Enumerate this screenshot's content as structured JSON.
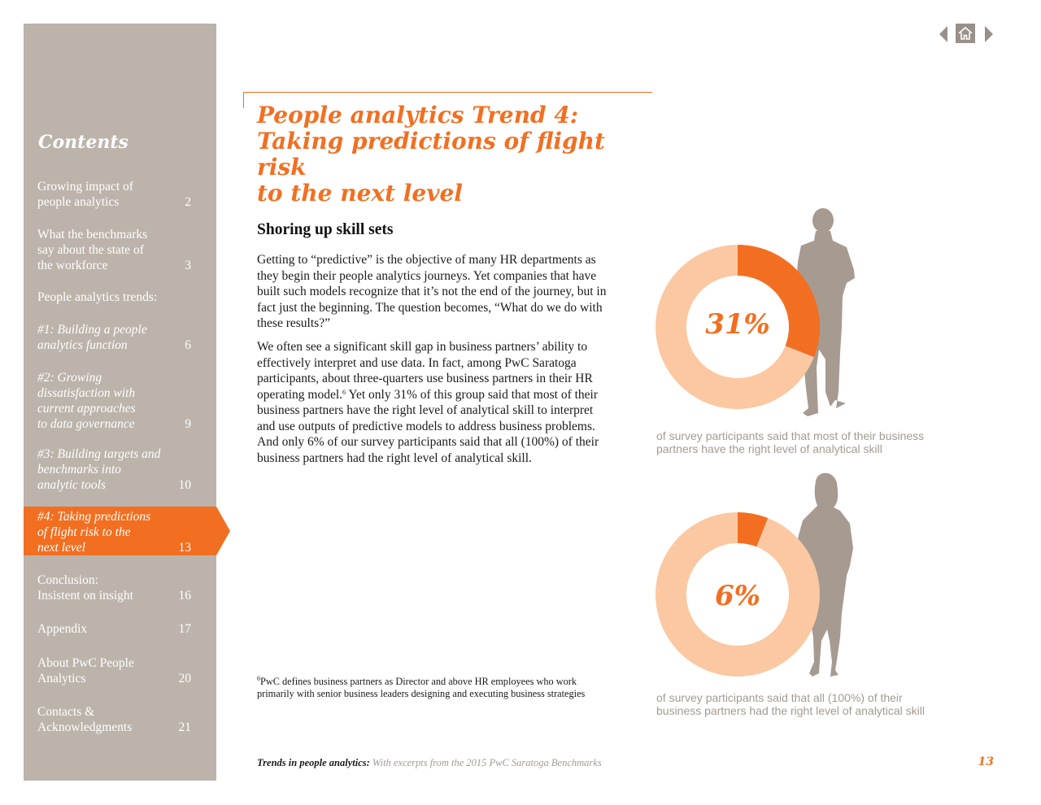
{
  "nav": {
    "prev_icon": "triangle-left-icon",
    "home_icon": "home-icon",
    "next_icon": "triangle-right-icon"
  },
  "sidebar": {
    "title": "Contents",
    "items": [
      {
        "label": "Growing impact of\npeople analytics",
        "page": "2",
        "italic": false
      },
      {
        "label": "What the benchmarks\nsay about the state of\nthe workforce",
        "page": "3",
        "italic": false
      },
      {
        "label": "People analytics trends:",
        "page": "",
        "italic": false
      },
      {
        "label": "#1: Building a people\nanalytics function",
        "page": "6",
        "italic": true
      },
      {
        "label": "#2: Growing\ndissatisfaction with\ncurrent approaches\nto data governance",
        "page": "9",
        "italic": true
      },
      {
        "label": "#3: Building targets and\nbenchmarks into\nanalytic tools",
        "page": "10",
        "italic": true
      },
      {
        "label": "#4: Taking predictions\nof flight risk to the\nnext level",
        "page": "13",
        "italic": true,
        "active": true
      },
      {
        "label": "Conclusion:\nInsistent on insight",
        "page": "16",
        "italic": false
      },
      {
        "label": "Appendix",
        "page": "17",
        "italic": false
      },
      {
        "label": "About PwC People\nAnalytics",
        "page": "20",
        "italic": false
      },
      {
        "label": "Contacts &\nAcknowledgments",
        "page": "21",
        "italic": false
      }
    ]
  },
  "main": {
    "title": "People analytics Trend 4:\nTaking predictions of flight risk\nto the next level",
    "section_heading": "Shoring up skill sets",
    "paragraph1": "Getting to “predictive” is the objective of many HR departments as they begin their people analytics journeys. Yet companies that have built such models recognize that it’s not the end of the journey, but in fact just the beginning. The question becomes, “What do we do with these results?”",
    "paragraph2_a": "We often see a significant skill gap in business partners’ ability to effectively interpret and use data. In fact, among PwC Saratoga participants, about three-quarters use business partners in their HR operating model.",
    "paragraph2_sup": "6",
    "paragraph2_b": " Yet only 31% of this group said that most of their business partners have the right level of analytical skill to interpret and use outputs of predictive models to address business problems. And only 6% of our survey participants said that all (100%) of their business partners had the right level of analytical skill.",
    "footnote_sup": "6",
    "footnote": "PwC defines business partners as Director and above HR employees who work primarily with senior business leaders designing and executing business strategies"
  },
  "stats": [
    {
      "label": "31%",
      "value": 31,
      "caption": "of survey participants said that most of their business\npartners have the right level of analytical skill",
      "figure": "man-silhouette-icon"
    },
    {
      "label": "6%",
      "value": 6,
      "caption": "of survey participants said that all (100%) of their\nbusiness partners had the right level of analytical skill",
      "figure": "woman-silhouette-icon"
    }
  ],
  "colors": {
    "accent": "#f26f21",
    "donut_remainder": "#fbc8a2",
    "sidebar": "#bcb3aa",
    "silhouette": "#a69a91",
    "caption": "#a39a92"
  },
  "footer": {
    "title": "Trends in people analytics:",
    "subtitle": " With excerpts from the 2015 PwC Saratoga Benchmarks",
    "page_number": "13"
  }
}
